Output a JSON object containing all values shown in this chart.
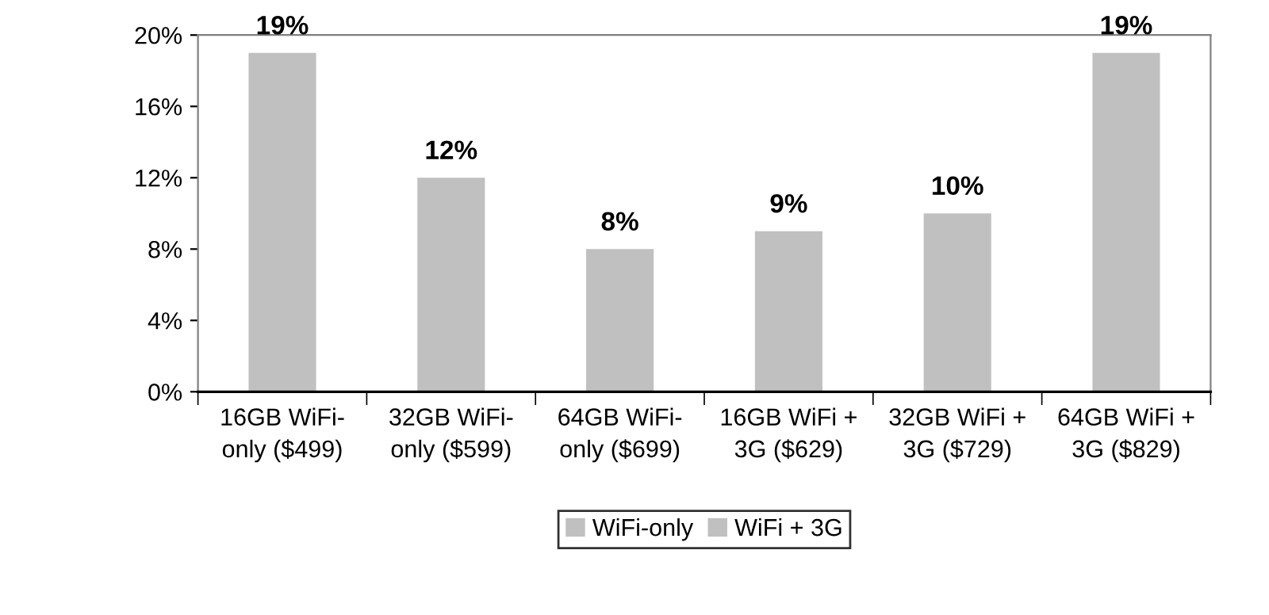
{
  "chart_data": {
    "type": "bar",
    "categories": [
      "16GB WiFi-\nonly ($499)",
      "32GB WiFi-\nonly ($599)",
      "64GB WiFi-\nonly ($699)",
      "16GB WiFi +\n3G ($629)",
      "32GB WiFi +\n3G ($729)",
      "64GB WiFi +\n3G ($829)"
    ],
    "series": [
      {
        "name": "WiFi-only",
        "color": "#c0c0c0",
        "values": [
          19,
          12,
          8,
          null,
          null,
          null
        ]
      },
      {
        "name": "WiFi + 3G",
        "color": "#c0c0c0",
        "values": [
          null,
          null,
          null,
          9,
          10,
          19
        ]
      }
    ],
    "value_labels": [
      "19%",
      "12%",
      "8%",
      "9%",
      "10%",
      "19%"
    ],
    "ylim": [
      0,
      20
    ],
    "yticks": [
      {
        "value": 0,
        "label": "0%"
      },
      {
        "value": 4,
        "label": "4%"
      },
      {
        "value": 8,
        "label": "8%"
      },
      {
        "value": 12,
        "label": "12%"
      },
      {
        "value": 16,
        "label": "16%"
      },
      {
        "value": 20,
        "label": "20%"
      }
    ],
    "grid": false,
    "legend": "bottom"
  }
}
